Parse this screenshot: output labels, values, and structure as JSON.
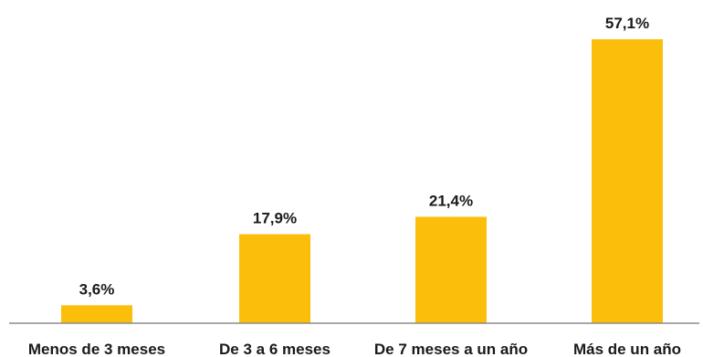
{
  "chart_data": {
    "type": "bar",
    "categories": [
      "Menos de 3 meses",
      "De 3 a 6 meses",
      "De 7 meses a un año",
      "Más de un año"
    ],
    "values": [
      3.6,
      17.9,
      21.4,
      57.1
    ],
    "value_labels": [
      "3,6%",
      "17,9%",
      "21,4%",
      "57,1%"
    ],
    "ylim": [
      0,
      57.1
    ],
    "grid": false,
    "legend": "none",
    "colors": {
      "bar": "#FBBF0B",
      "axis": "#8c8c8c",
      "text": "#1a1a1a"
    }
  }
}
